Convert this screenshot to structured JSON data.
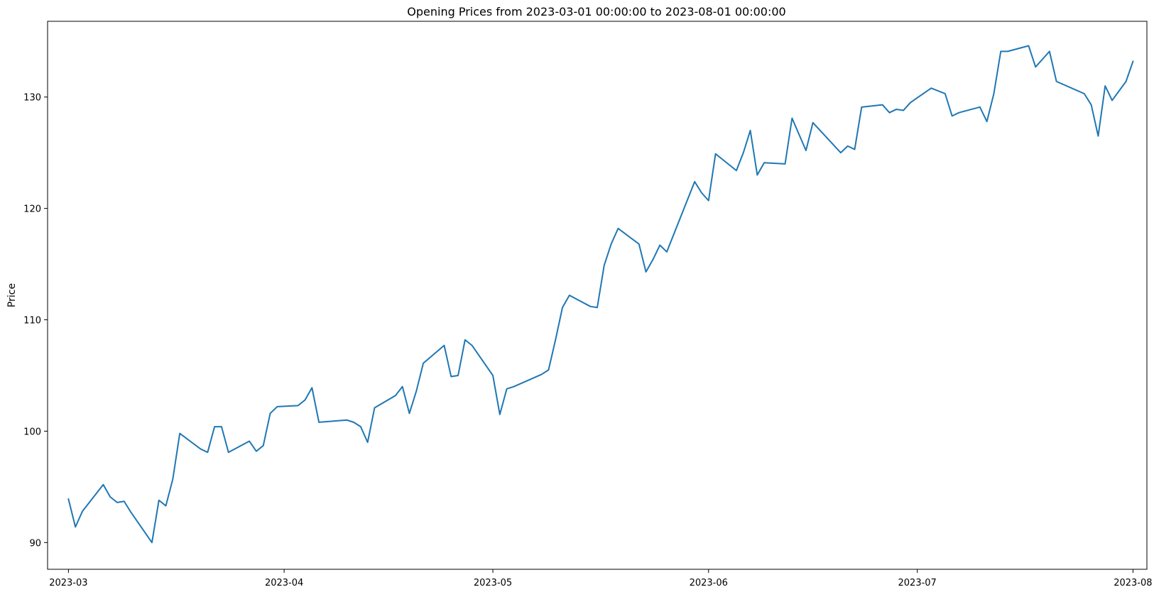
{
  "chart_data": {
    "type": "line",
    "title": "Opening Prices from 2023-03-01 00:00:00 to 2023-08-01 00:00:00",
    "xlabel": "",
    "ylabel": "Price",
    "xlim": [
      "2023-02-26",
      "2023-08-03"
    ],
    "ylim": [
      87.6,
      136.8
    ],
    "xticks": [
      {
        "value": "2023-03-01",
        "label": "2023-03"
      },
      {
        "value": "2023-04-01",
        "label": "2023-04"
      },
      {
        "value": "2023-05-01",
        "label": "2023-05"
      },
      {
        "value": "2023-06-01",
        "label": "2023-06"
      },
      {
        "value": "2023-07-01",
        "label": "2023-07"
      },
      {
        "value": "2023-08-01",
        "label": "2023-08"
      }
    ],
    "yticks": [
      {
        "value": 90,
        "label": "90"
      },
      {
        "value": 100,
        "label": "100"
      },
      {
        "value": 110,
        "label": "110"
      },
      {
        "value": 120,
        "label": "120"
      },
      {
        "value": 130,
        "label": "130"
      }
    ],
    "grid": false,
    "legend": "none",
    "series": [
      {
        "color": "#1f77b4",
        "points": [
          [
            "2023-03-01",
            93.9
          ],
          [
            "2023-03-02",
            91.4
          ],
          [
            "2023-03-03",
            92.8
          ],
          [
            "2023-03-06",
            95.2
          ],
          [
            "2023-03-07",
            94.1
          ],
          [
            "2023-03-08",
            93.6
          ],
          [
            "2023-03-09",
            93.7
          ],
          [
            "2023-03-10",
            92.7
          ],
          [
            "2023-03-13",
            90.0
          ],
          [
            "2023-03-14",
            93.8
          ],
          [
            "2023-03-15",
            93.3
          ],
          [
            "2023-03-16",
            95.7
          ],
          [
            "2023-03-17",
            99.8
          ],
          [
            "2023-03-20",
            98.4
          ],
          [
            "2023-03-21",
            98.1
          ],
          [
            "2023-03-22",
            100.4
          ],
          [
            "2023-03-23",
            100.4
          ],
          [
            "2023-03-24",
            98.1
          ],
          [
            "2023-03-27",
            99.1
          ],
          [
            "2023-03-28",
            98.2
          ],
          [
            "2023-03-29",
            98.7
          ],
          [
            "2023-03-30",
            101.6
          ],
          [
            "2023-03-31",
            102.2
          ],
          [
            "2023-04-03",
            102.3
          ],
          [
            "2023-04-04",
            102.8
          ],
          [
            "2023-04-05",
            103.9
          ],
          [
            "2023-04-06",
            100.8
          ],
          [
            "2023-04-10",
            101.0
          ],
          [
            "2023-04-11",
            100.8
          ],
          [
            "2023-04-12",
            100.4
          ],
          [
            "2023-04-13",
            99.0
          ],
          [
            "2023-04-14",
            102.1
          ],
          [
            "2023-04-17",
            103.2
          ],
          [
            "2023-04-18",
            104.0
          ],
          [
            "2023-04-19",
            101.6
          ],
          [
            "2023-04-20",
            103.6
          ],
          [
            "2023-04-21",
            106.1
          ],
          [
            "2023-04-24",
            107.7
          ],
          [
            "2023-04-25",
            104.9
          ],
          [
            "2023-04-26",
            105.0
          ],
          [
            "2023-04-27",
            108.2
          ],
          [
            "2023-04-28",
            107.7
          ],
          [
            "2023-05-01",
            105.0
          ],
          [
            "2023-05-02",
            101.5
          ],
          [
            "2023-05-03",
            103.8
          ],
          [
            "2023-05-04",
            104.0
          ],
          [
            "2023-05-08",
            105.1
          ],
          [
            "2023-05-09",
            105.5
          ],
          [
            "2023-05-10",
            108.2
          ],
          [
            "2023-05-11",
            111.1
          ],
          [
            "2023-05-12",
            112.2
          ],
          [
            "2023-05-15",
            111.2
          ],
          [
            "2023-05-16",
            111.1
          ],
          [
            "2023-05-17",
            114.9
          ],
          [
            "2023-05-18",
            116.8
          ],
          [
            "2023-05-19",
            118.2
          ],
          [
            "2023-05-22",
            116.8
          ],
          [
            "2023-05-23",
            114.3
          ],
          [
            "2023-05-24",
            115.4
          ],
          [
            "2023-05-25",
            116.7
          ],
          [
            "2023-05-26",
            116.1
          ],
          [
            "2023-05-30",
            122.4
          ],
          [
            "2023-05-31",
            121.4
          ],
          [
            "2023-06-01",
            120.7
          ],
          [
            "2023-06-02",
            124.9
          ],
          [
            "2023-06-05",
            123.4
          ],
          [
            "2023-06-06",
            125.0
          ],
          [
            "2023-06-07",
            127.0
          ],
          [
            "2023-06-08",
            123.0
          ],
          [
            "2023-06-09",
            124.1
          ],
          [
            "2023-06-12",
            124.0
          ],
          [
            "2023-06-13",
            128.1
          ],
          [
            "2023-06-15",
            125.2
          ],
          [
            "2023-06-16",
            127.7
          ],
          [
            "2023-06-20",
            125.0
          ],
          [
            "2023-06-21",
            125.6
          ],
          [
            "2023-06-22",
            125.3
          ],
          [
            "2023-06-23",
            129.1
          ],
          [
            "2023-06-26",
            129.3
          ],
          [
            "2023-06-27",
            128.6
          ],
          [
            "2023-06-28",
            128.9
          ],
          [
            "2023-06-29",
            128.8
          ],
          [
            "2023-06-30",
            129.5
          ],
          [
            "2023-07-03",
            130.8
          ],
          [
            "2023-07-05",
            130.3
          ],
          [
            "2023-07-06",
            128.3
          ],
          [
            "2023-07-07",
            128.6
          ],
          [
            "2023-07-10",
            129.1
          ],
          [
            "2023-07-11",
            127.8
          ],
          [
            "2023-07-12",
            130.3
          ],
          [
            "2023-07-13",
            134.1
          ],
          [
            "2023-07-14",
            134.1
          ],
          [
            "2023-07-17",
            134.6
          ],
          [
            "2023-07-18",
            132.7
          ],
          [
            "2023-07-20",
            134.1
          ],
          [
            "2023-07-21",
            131.4
          ],
          [
            "2023-07-25",
            130.3
          ],
          [
            "2023-07-26",
            129.3
          ],
          [
            "2023-07-27",
            126.5
          ],
          [
            "2023-07-28",
            131.0
          ],
          [
            "2023-07-29",
            129.7
          ],
          [
            "2023-07-31",
            131.4
          ],
          [
            "2023-08-01",
            133.2
          ]
        ]
      }
    ]
  }
}
